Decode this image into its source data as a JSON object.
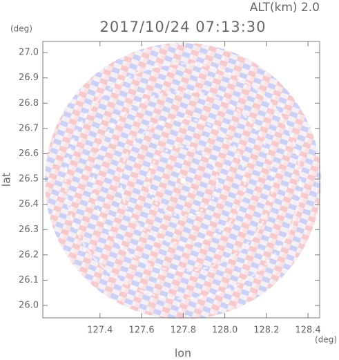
{
  "chart_data": {
    "type": "radar-ppi",
    "title": "2017/10/24 07:13:30",
    "subtitle": "ALT(km) 2.0",
    "x_label": "lon",
    "y_label": "lat",
    "x_unit": "(deg)",
    "y_unit": "(deg)",
    "xlim": [
      127.125,
      128.456
    ],
    "ylim": [
      25.951,
      27.044
    ],
    "xticks": [
      127.4,
      127.6,
      127.8,
      {
        "value": 128.0,
        "label": "128.0"
      },
      128.2,
      128.4
    ],
    "yticks": [
      {
        "value": 26.0,
        "label": "26.0"
      },
      26.1,
      26.2,
      26.3,
      26.4,
      26.5,
      26.6,
      26.7,
      26.8,
      26.9,
      {
        "value": 27.0,
        "label": "27.0"
      }
    ]
  }
}
